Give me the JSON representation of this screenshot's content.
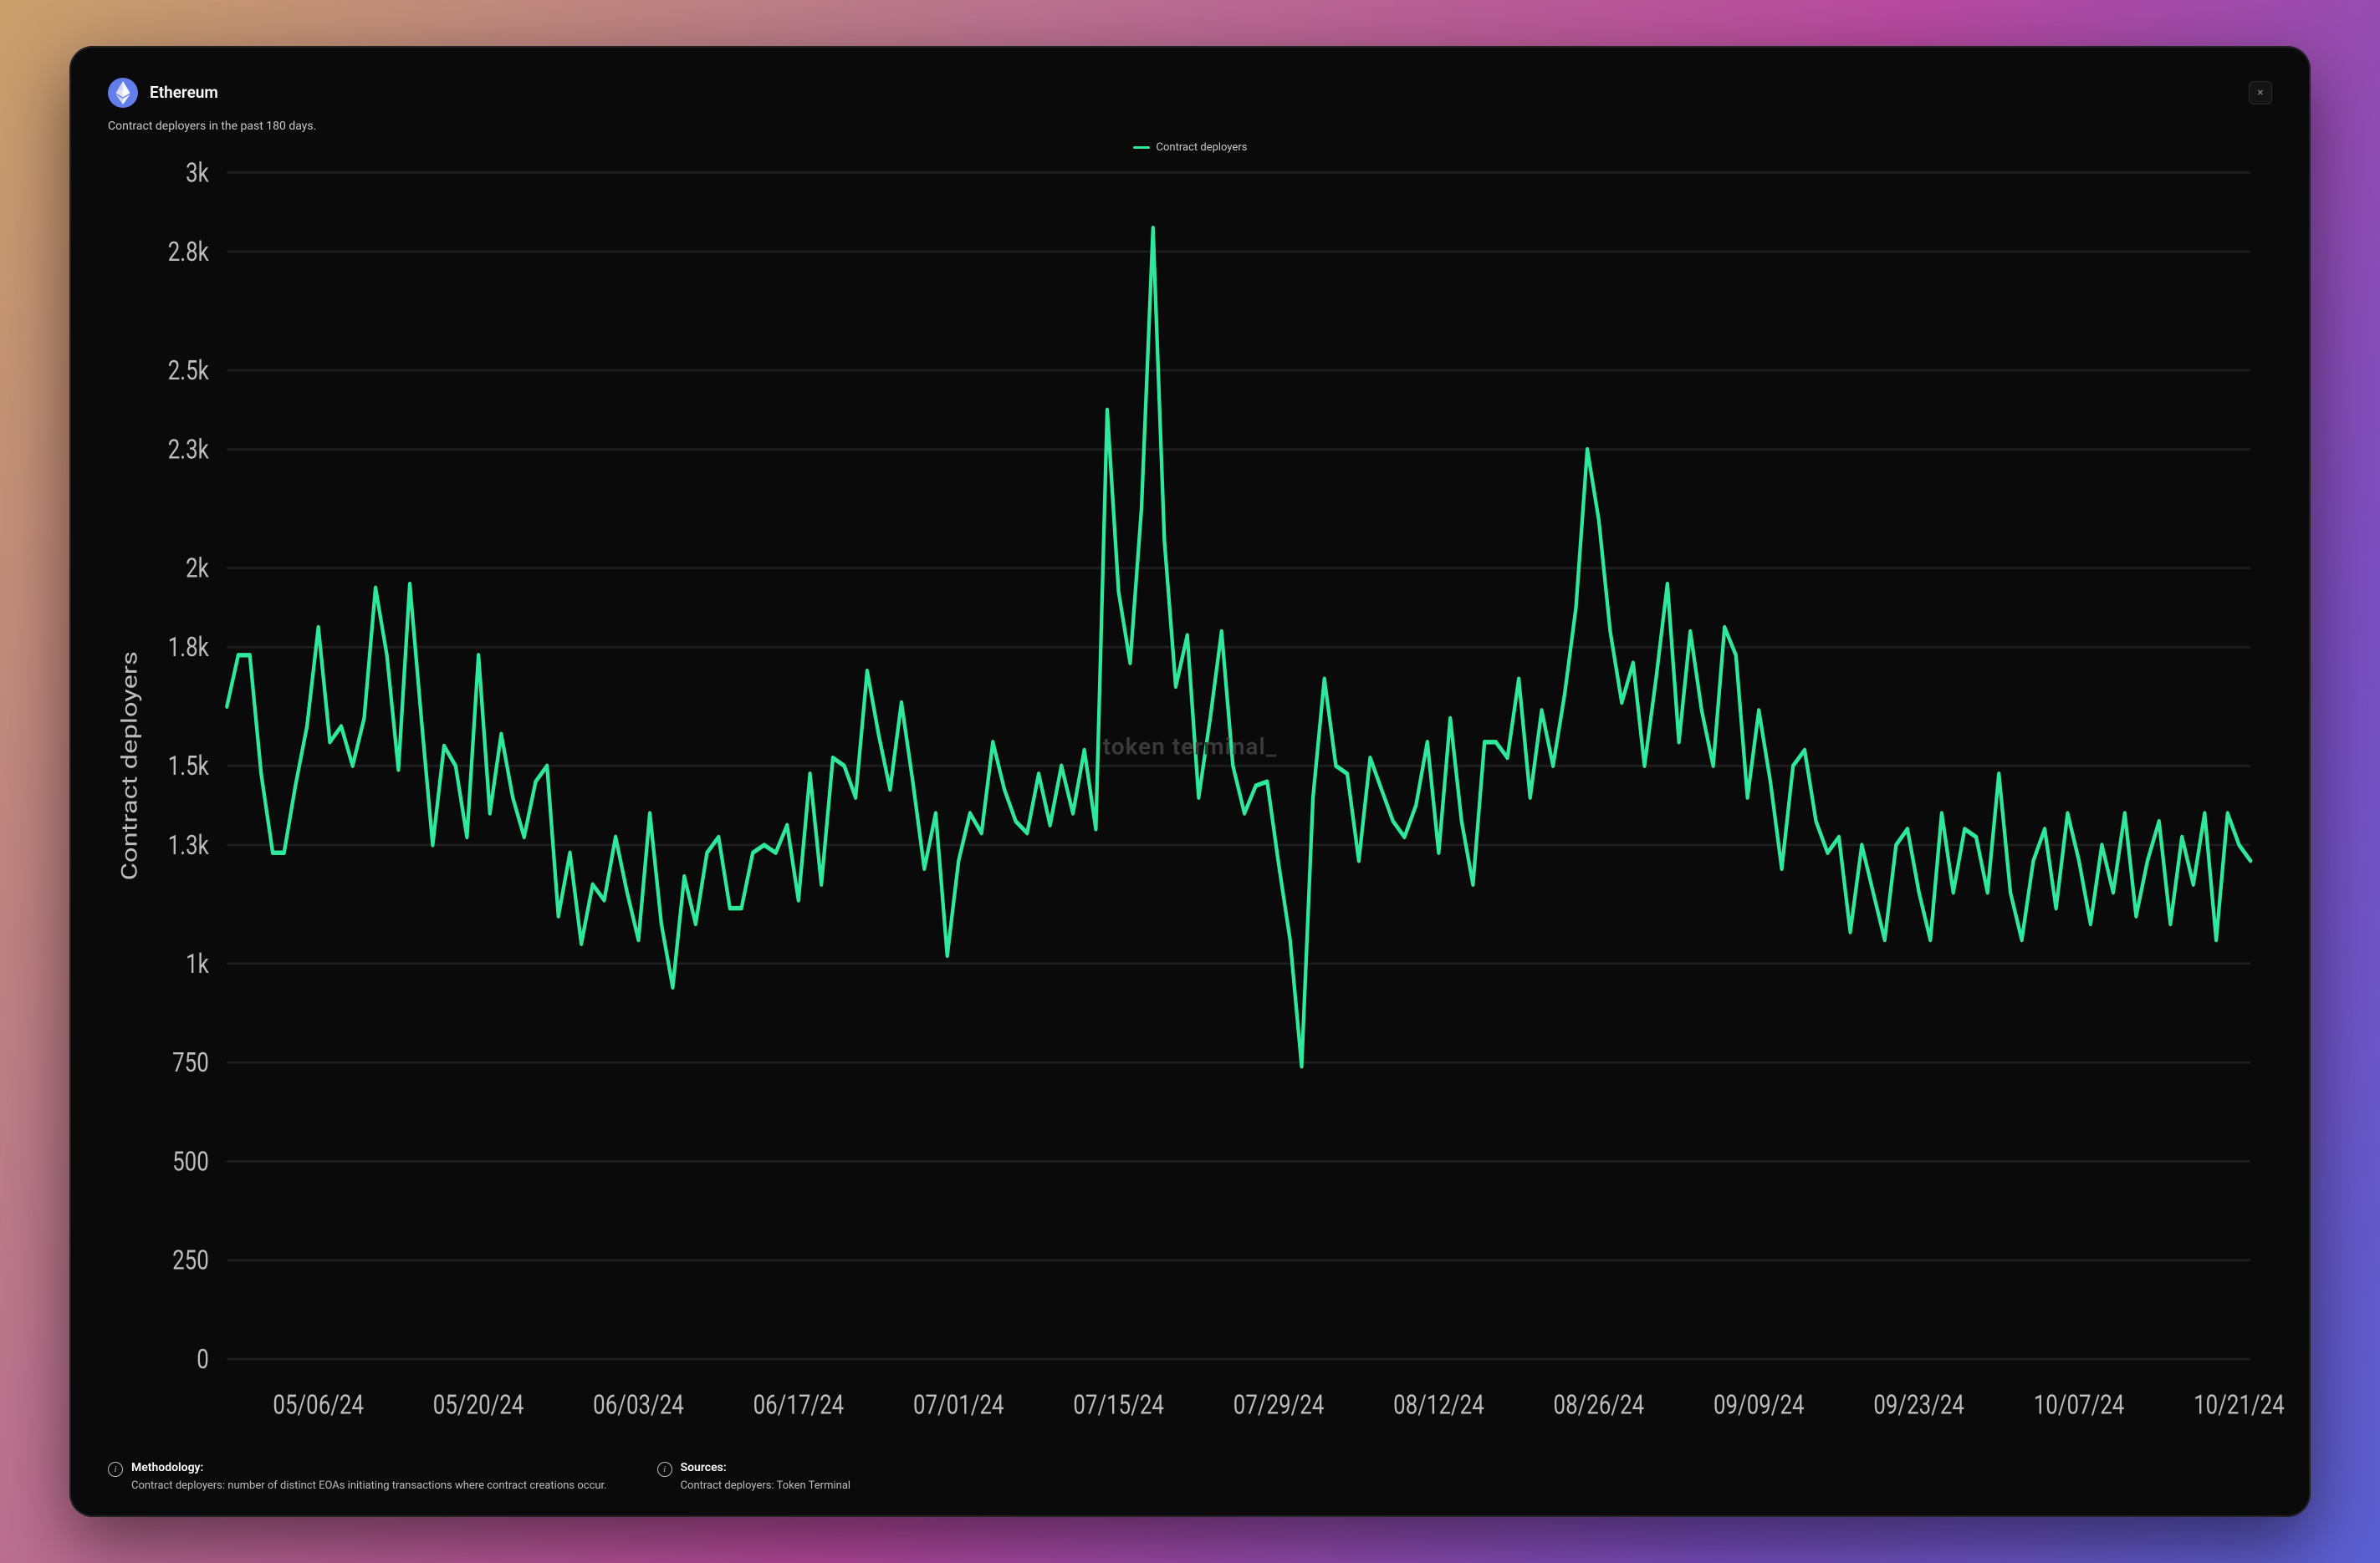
{
  "header": {
    "title": "Ethereum",
    "icon_bg": "#627eea",
    "icon_fg": "#ffffff"
  },
  "close_label": "×",
  "subtitle": "Contract deployers in the past 180 days.",
  "watermark": "token terminal",
  "chart": {
    "type": "line",
    "series_label": "Contract deployers",
    "line_color": "#2ee89b",
    "line_width": 2,
    "background_color": "#0a0a0a",
    "grid_color": "#1e1e1e",
    "axis_text_color": "#bdbdbd",
    "y_axis_title": "Contract deployers",
    "ylim": [
      0,
      3000
    ],
    "yticks": [
      0,
      250,
      500,
      750,
      1000,
      1300,
      1500,
      1800,
      2000,
      2300,
      2500,
      2800,
      3000
    ],
    "ytick_labels": [
      "0",
      "250",
      "500",
      "750",
      "1k",
      "1.3k",
      "1.5k",
      "1.8k",
      "2k",
      "2.3k",
      "2.5k",
      "2.8k",
      "3k"
    ],
    "xtick_indices": [
      8,
      22,
      36,
      50,
      64,
      78,
      92,
      106,
      120,
      134,
      148,
      162,
      176
    ],
    "xtick_labels": [
      "05/06/24",
      "05/20/24",
      "06/03/24",
      "06/17/24",
      "07/01/24",
      "07/15/24",
      "07/29/24",
      "08/12/24",
      "08/26/24",
      "09/09/24",
      "09/23/24",
      "10/07/24",
      "10/21/24"
    ],
    "values": [
      1650,
      1780,
      1780,
      1480,
      1280,
      1280,
      1450,
      1600,
      1850,
      1560,
      1600,
      1500,
      1620,
      1950,
      1780,
      1490,
      1960,
      1620,
      1300,
      1550,
      1500,
      1320,
      1780,
      1380,
      1580,
      1420,
      1320,
      1460,
      1500,
      1120,
      1280,
      1050,
      1200,
      1160,
      1320,
      1180,
      1060,
      1380,
      1100,
      940,
      1220,
      1100,
      1280,
      1320,
      1140,
      1140,
      1280,
      1300,
      1280,
      1350,
      1160,
      1480,
      1200,
      1520,
      1500,
      1420,
      1740,
      1580,
      1440,
      1660,
      1460,
      1240,
      1380,
      1020,
      1260,
      1380,
      1330,
      1560,
      1440,
      1360,
      1330,
      1480,
      1350,
      1500,
      1380,
      1540,
      1340,
      2400,
      1940,
      1760,
      2150,
      2860,
      2070,
      1700,
      1830,
      1420,
      1620,
      1840,
      1500,
      1380,
      1450,
      1460,
      1250,
      1060,
      740,
      1420,
      1720,
      1500,
      1480,
      1260,
      1520,
      1440,
      1360,
      1320,
      1400,
      1560,
      1280,
      1620,
      1360,
      1200,
      1560,
      1560,
      1520,
      1720,
      1420,
      1640,
      1500,
      1680,
      1900,
      2300,
      2120,
      1840,
      1660,
      1760,
      1500,
      1720,
      1960,
      1560,
      1840,
      1640,
      1500,
      1850,
      1780,
      1420,
      1640,
      1460,
      1240,
      1500,
      1540,
      1360,
      1280,
      1320,
      1080,
      1300,
      1180,
      1060,
      1300,
      1340,
      1180,
      1060,
      1380,
      1180,
      1340,
      1320,
      1180,
      1480,
      1180,
      1060,
      1260,
      1340,
      1140,
      1380,
      1260,
      1100,
      1300,
      1180,
      1380,
      1120,
      1260,
      1360,
      1100,
      1320,
      1200,
      1380,
      1060,
      1380,
      1300,
      1260
    ]
  },
  "footer": {
    "methodology_heading": "Methodology:",
    "methodology_body": "Contract deployers: number of distinct EOAs initiating transactions where contract creations occur.",
    "sources_heading": "Sources:",
    "sources_body": "Contract deployers: Token Terminal"
  }
}
